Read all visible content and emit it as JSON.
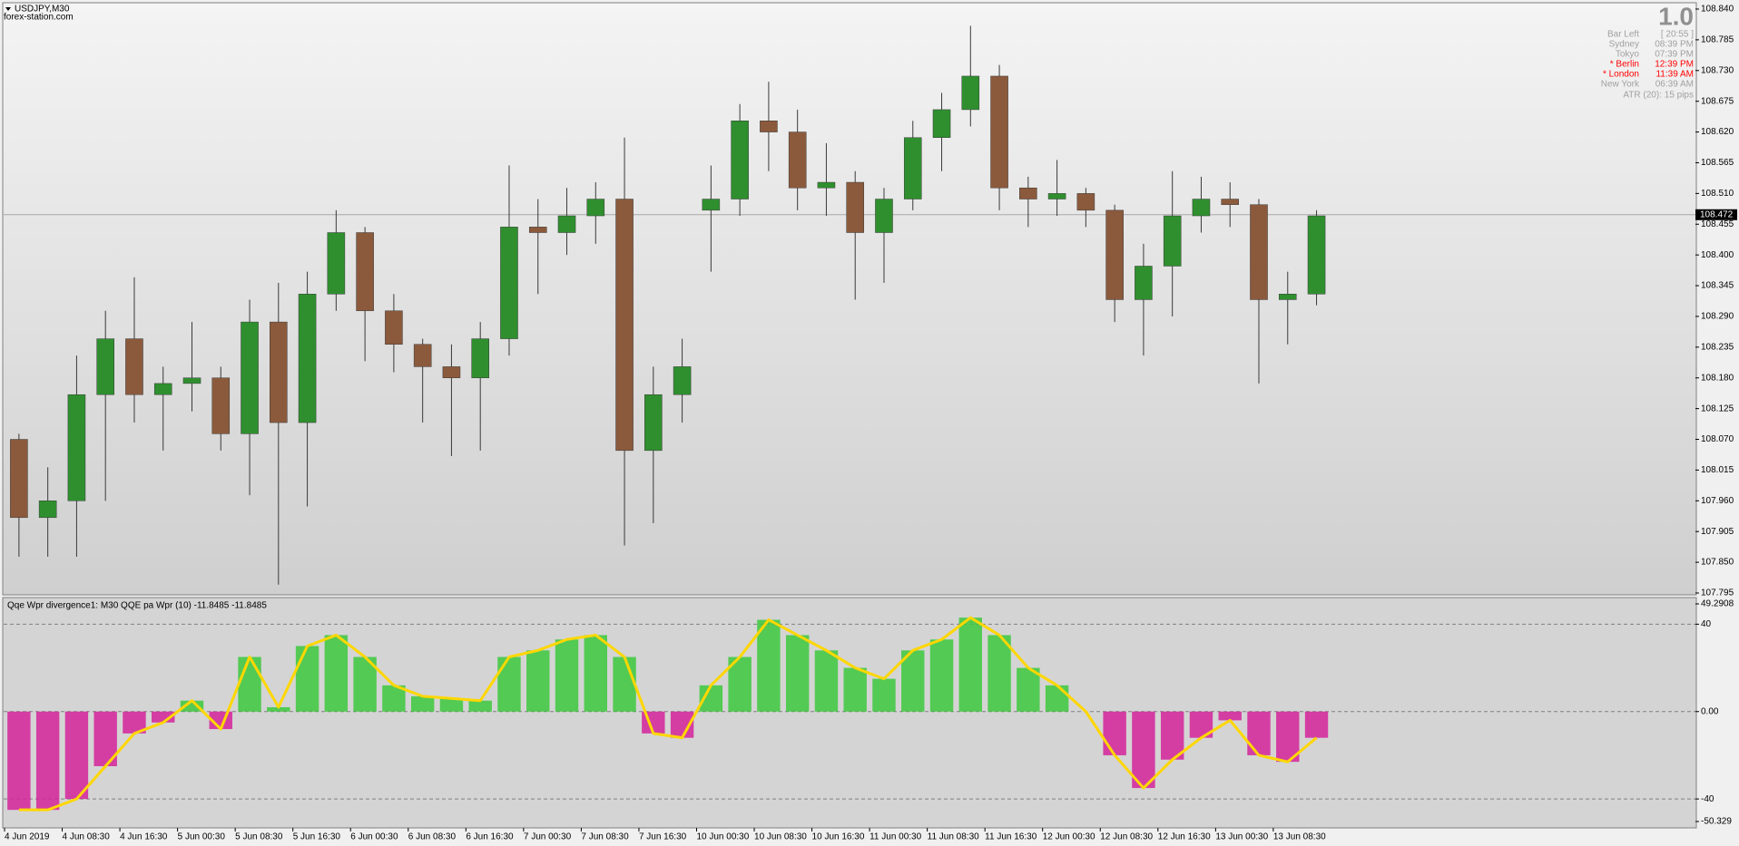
{
  "watermark": "forex-station.com",
  "info_panel": {
    "version": "1.0",
    "rows": [
      {
        "label": "Bar Left",
        "value": "[ 20:55 ]",
        "color": "#a0a0a0"
      },
      {
        "label": "Sydney",
        "value": "08:39 PM",
        "color": "#a0a0a0"
      },
      {
        "label": "Tokyo",
        "value": "07:39 PM",
        "color": "#a0a0a0"
      },
      {
        "label": "* Berlin",
        "value": "12:39 PM",
        "color": "#ff0000"
      },
      {
        "label": "* London",
        "value": "11:39 AM",
        "color": "#ff0000"
      },
      {
        "label": "New York",
        "value": "06:39 AM",
        "color": "#a0a0a0"
      }
    ],
    "atr": "ATR (20): 15 pips"
  },
  "chart_data": [
    {
      "type": "candlestick",
      "title": "USDJPY,M30",
      "open": [
        108.07,
        107.93,
        107.96,
        108.15,
        108.25,
        108.15,
        108.17,
        108.18,
        108.08,
        108.28,
        108.1,
        108.33,
        108.44,
        108.3,
        108.24,
        108.2,
        108.18,
        108.25,
        108.45,
        108.44,
        108.47,
        108.5,
        108.05,
        108.15,
        108.48,
        108.5,
        108.64,
        108.62,
        108.52,
        108.53,
        108.44,
        108.5,
        108.61,
        108.66,
        108.72,
        108.52,
        108.5,
        108.51,
        108.48,
        108.32,
        108.38,
        108.47,
        108.5,
        108.49,
        108.32,
        108.33
      ],
      "high": [
        108.08,
        108.02,
        108.22,
        108.3,
        108.36,
        108.2,
        108.28,
        108.2,
        108.32,
        108.35,
        108.37,
        108.48,
        108.45,
        108.33,
        108.25,
        108.24,
        108.28,
        108.56,
        108.5,
        108.52,
        108.53,
        108.61,
        108.2,
        108.25,
        108.56,
        108.67,
        108.71,
        108.66,
        108.6,
        108.55,
        108.52,
        108.64,
        108.69,
        108.81,
        108.74,
        108.54,
        108.57,
        108.52,
        108.49,
        108.42,
        108.55,
        108.54,
        108.53,
        108.5,
        108.37,
        108.48
      ],
      "low": [
        107.86,
        107.86,
        107.86,
        107.96,
        108.1,
        108.05,
        108.12,
        108.05,
        107.97,
        107.81,
        107.95,
        108.3,
        108.21,
        108.19,
        108.1,
        108.04,
        108.05,
        108.22,
        108.33,
        108.4,
        108.42,
        107.88,
        107.92,
        108.1,
        108.37,
        108.47,
        108.55,
        108.48,
        108.47,
        108.32,
        108.35,
        108.48,
        108.55,
        108.63,
        108.48,
        108.45,
        108.47,
        108.45,
        108.28,
        108.22,
        108.29,
        108.44,
        108.45,
        108.17,
        108.24,
        108.31
      ],
      "close": [
        107.93,
        107.96,
        108.15,
        108.25,
        108.15,
        108.17,
        108.18,
        108.08,
        108.28,
        108.1,
        108.33,
        108.44,
        108.3,
        108.24,
        108.2,
        108.18,
        108.25,
        108.45,
        108.44,
        108.47,
        108.5,
        108.05,
        108.15,
        108.2,
        108.5,
        108.64,
        108.62,
        108.52,
        108.53,
        108.44,
        108.5,
        108.61,
        108.66,
        108.72,
        108.52,
        108.5,
        108.51,
        108.48,
        108.32,
        108.38,
        108.47,
        108.5,
        108.49,
        108.32,
        108.33,
        108.47
      ],
      "up_color": "#2f8f2f",
      "down_color": "#8b5a3c",
      "ylim": [
        107.795,
        108.84
      ],
      "yticks": [
        {
          "value": 108.84,
          "label": "108.840"
        },
        108.785,
        {
          "value": 108.73,
          "label": "108.730"
        },
        108.675,
        {
          "value": 108.62,
          "label": "108.620"
        },
        108.565,
        {
          "value": 108.51,
          "label": "108.510"
        },
        108.455,
        {
          "value": 108.4,
          "label": "108.400"
        },
        108.345,
        {
          "value": 108.29,
          "label": "108.290"
        },
        108.235,
        {
          "value": 108.18,
          "label": "108.180"
        },
        108.125,
        {
          "value": 108.07,
          "label": "108.070"
        },
        108.015,
        {
          "value": 107.96,
          "label": "107.960"
        },
        107.905,
        {
          "value": 107.85,
          "label": "107.850"
        },
        107.795
      ],
      "current_price": 108.472
    },
    {
      "type": "histogram_line",
      "title": "Qqe Wpr divergence1: M30  QQE pa Wpr (10) -11.8485 -11.8485",
      "categories": [
        "4 Jun 2019",
        null,
        "4 Jun 08:30",
        null,
        "4 Jun 16:30",
        null,
        "5 Jun 00:30",
        null,
        "5 Jun 08:30",
        null,
        "5 Jun 16:30",
        null,
        "6 Jun 00:30",
        null,
        "6 Jun 08:30",
        null,
        "6 Jun 16:30",
        null,
        "7 Jun 00:30",
        null,
        "7 Jun 08:30",
        null,
        "7 Jun 16:30",
        null,
        "10 Jun 00:30",
        null,
        "10 Jun 08:30",
        null,
        "10 Jun 16:30",
        null,
        "11 Jun 00:30",
        null,
        "11 Jun 08:30",
        null,
        "11 Jun 16:30",
        null,
        "12 Jun 00:30",
        null,
        "12 Jun 08:30",
        null,
        "12 Jun 16:30",
        null,
        "13 Jun 00:30",
        null,
        "13 Jun 08:30",
        null
      ],
      "values": [
        -45,
        -45,
        -40,
        -25,
        -10,
        -5,
        5,
        -8,
        25,
        2,
        30,
        35,
        25,
        12,
        7,
        6,
        5,
        25,
        28,
        33,
        35,
        25,
        -10,
        -12,
        12,
        25,
        42,
        35,
        28,
        20,
        15,
        28,
        33,
        43,
        35,
        20,
        12,
        0,
        -20,
        -35,
        -22,
        -12,
        -4,
        -20,
        -23,
        -12
      ],
      "positive_color": "#3cc83c",
      "negative_color": "#d4239a",
      "line_color": "#ffd700",
      "ylim": [
        -50.329,
        49.2908
      ],
      "yticks": [
        49.2908,
        40,
        {
          "value": 0,
          "label": "0.00"
        },
        -40,
        -50.329
      ]
    }
  ]
}
